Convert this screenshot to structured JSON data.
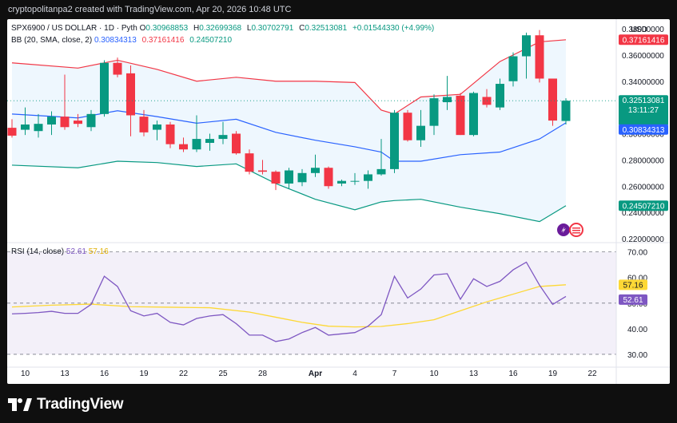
{
  "header": {
    "caption": "cryptopolitanpa2 created with TradingView.com, Apr 20, 2026 10:48 UTC"
  },
  "legend": {
    "symbol": "SPX6900 / US DOLLAR · 1D · Pyth",
    "open_label": "O",
    "open": "0.30968853",
    "high_label": "H",
    "high": "0.32699368",
    "low_label": "L",
    "low": "0.30702791",
    "close_label": "C",
    "close": "0.32513081",
    "change": "+0.01544330 (+4.99%)",
    "bb_label": "BB (20, SMA, close, 2)",
    "bb_basis": "0.30834313",
    "bb_upper": "0.37161416",
    "bb_lower": "0.24507210",
    "rsi_label": "RSI (14, close)",
    "rsi_value": "52.61",
    "rsi_ma": "57.16"
  },
  "axis": {
    "currency": "USD",
    "price_ticks": [
      "0.38000000",
      "0.36000000",
      "0.34000000",
      "0.32000000",
      "0.30000000",
      "0.28000000",
      "0.26000000",
      "0.24000000",
      "0.22000000"
    ],
    "rsi_ticks": [
      "70.00",
      "60.00",
      "50.00",
      "40.00",
      "30.00"
    ],
    "x_ticks": [
      "10",
      "13",
      "16",
      "19",
      "22",
      "25",
      "28",
      "Apr",
      "4",
      "7",
      "10",
      "13",
      "16",
      "19",
      "22"
    ]
  },
  "price_badges": {
    "upper": "0.37161416",
    "last": "0.32513081",
    "countdown": "13:11:27",
    "basis": "0.30834313",
    "lower": "0.24507210",
    "rsi_ma": "57.16",
    "rsi": "52.61"
  },
  "colors": {
    "up": "#089981",
    "down": "#f23645",
    "bb_basis": "#2962ff",
    "bb_upper": "#f23645",
    "bb_lower": "#089981",
    "bb_fill": "#2196f3",
    "rsi": "#7e57c2",
    "rsi_ma": "#fdd835",
    "rsi_bg": "#7e57c2"
  },
  "footer": {
    "brand": "TradingView"
  },
  "chart_data": {
    "type": "candlestick",
    "title": "SPX6900 / US DOLLAR · 1D · Pyth",
    "ylim": [
      0.22,
      0.38
    ],
    "x_tick_days": [
      10,
      13,
      16,
      19,
      22,
      25,
      28,
      32,
      35,
      38,
      41,
      44,
      47,
      50,
      53
    ],
    "candles": [
      {
        "d": 9,
        "o": 0.3045,
        "h": 0.311,
        "l": 0.297,
        "c": 0.2985
      },
      {
        "d": 10,
        "o": 0.303,
        "h": 0.32,
        "l": 0.299,
        "c": 0.307
      },
      {
        "d": 11,
        "o": 0.302,
        "h": 0.315,
        "l": 0.297,
        "c": 0.3075
      },
      {
        "d": 12,
        "o": 0.307,
        "h": 0.317,
        "l": 0.299,
        "c": 0.313
      },
      {
        "d": 13,
        "o": 0.313,
        "h": 0.345,
        "l": 0.303,
        "c": 0.305
      },
      {
        "d": 14,
        "o": 0.31,
        "h": 0.315,
        "l": 0.305,
        "c": 0.3075
      },
      {
        "d": 15,
        "o": 0.305,
        "h": 0.318,
        "l": 0.302,
        "c": 0.315
      },
      {
        "d": 16,
        "o": 0.315,
        "h": 0.356,
        "l": 0.313,
        "c": 0.354
      },
      {
        "d": 17,
        "o": 0.354,
        "h": 0.358,
        "l": 0.343,
        "c": 0.345
      },
      {
        "d": 18,
        "o": 0.346,
        "h": 0.352,
        "l": 0.298,
        "c": 0.314
      },
      {
        "d": 19,
        "o": 0.313,
        "h": 0.318,
        "l": 0.298,
        "c": 0.301
      },
      {
        "d": 20,
        "o": 0.303,
        "h": 0.31,
        "l": 0.295,
        "c": 0.307
      },
      {
        "d": 21,
        "o": 0.307,
        "h": 0.309,
        "l": 0.289,
        "c": 0.292
      },
      {
        "d": 22,
        "o": 0.292,
        "h": 0.297,
        "l": 0.286,
        "c": 0.288
      },
      {
        "d": 23,
        "o": 0.288,
        "h": 0.314,
        "l": 0.286,
        "c": 0.296
      },
      {
        "d": 24,
        "o": 0.293,
        "h": 0.3,
        "l": 0.287,
        "c": 0.296
      },
      {
        "d": 25,
        "o": 0.296,
        "h": 0.309,
        "l": 0.292,
        "c": 0.299
      },
      {
        "d": 26,
        "o": 0.3,
        "h": 0.302,
        "l": 0.284,
        "c": 0.285
      },
      {
        "d": 27,
        "o": 0.285,
        "h": 0.288,
        "l": 0.269,
        "c": 0.271
      },
      {
        "d": 28,
        "o": 0.272,
        "h": 0.28,
        "l": 0.269,
        "c": 0.271
      },
      {
        "d": 29,
        "o": 0.271,
        "h": 0.272,
        "l": 0.257,
        "c": 0.262
      },
      {
        "d": 30,
        "o": 0.262,
        "h": 0.274,
        "l": 0.258,
        "c": 0.272
      },
      {
        "d": 31,
        "o": 0.263,
        "h": 0.273,
        "l": 0.26,
        "c": 0.27
      },
      {
        "d": 32,
        "o": 0.27,
        "h": 0.284,
        "l": 0.267,
        "c": 0.274
      },
      {
        "d": 33,
        "o": 0.274,
        "h": 0.275,
        "l": 0.258,
        "c": 0.26
      },
      {
        "d": 34,
        "o": 0.262,
        "h": 0.265,
        "l": 0.26,
        "c": 0.264
      },
      {
        "d": 35,
        "o": 0.264,
        "h": 0.27,
        "l": 0.261,
        "c": 0.264
      },
      {
        "d": 36,
        "o": 0.264,
        "h": 0.272,
        "l": 0.258,
        "c": 0.269
      },
      {
        "d": 37,
        "o": 0.269,
        "h": 0.296,
        "l": 0.268,
        "c": 0.273
      },
      {
        "d": 38,
        "o": 0.273,
        "h": 0.318,
        "l": 0.27,
        "c": 0.316
      },
      {
        "d": 39,
        "o": 0.316,
        "h": 0.318,
        "l": 0.294,
        "c": 0.295
      },
      {
        "d": 40,
        "o": 0.295,
        "h": 0.318,
        "l": 0.29,
        "c": 0.306
      },
      {
        "d": 41,
        "o": 0.306,
        "h": 0.33,
        "l": 0.299,
        "c": 0.327
      },
      {
        "d": 42,
        "o": 0.324,
        "h": 0.344,
        "l": 0.318,
        "c": 0.328
      },
      {
        "d": 43,
        "o": 0.329,
        "h": 0.331,
        "l": 0.299,
        "c": 0.299
      },
      {
        "d": 44,
        "o": 0.299,
        "h": 0.332,
        "l": 0.298,
        "c": 0.331
      },
      {
        "d": 45,
        "o": 0.328,
        "h": 0.334,
        "l": 0.32,
        "c": 0.322
      },
      {
        "d": 46,
        "o": 0.32,
        "h": 0.342,
        "l": 0.318,
        "c": 0.338
      },
      {
        "d": 47,
        "o": 0.34,
        "h": 0.362,
        "l": 0.336,
        "c": 0.359
      },
      {
        "d": 48,
        "o": 0.359,
        "h": 0.377,
        "l": 0.342,
        "c": 0.375
      },
      {
        "d": 49,
        "o": 0.375,
        "h": 0.379,
        "l": 0.339,
        "c": 0.342
      },
      {
        "d": 50,
        "o": 0.342,
        "h": 0.342,
        "l": 0.306,
        "c": 0.31
      },
      {
        "d": 51,
        "o": 0.30968853,
        "h": 0.32699368,
        "l": 0.30702791,
        "c": 0.32513081
      }
    ],
    "bollinger": {
      "basis": [
        [
          9,
          0.315
        ],
        [
          14,
          0.312
        ],
        [
          17,
          0.3175
        ],
        [
          20,
          0.313
        ],
        [
          23,
          0.308
        ],
        [
          26,
          0.311
        ],
        [
          29,
          0.301
        ],
        [
          32,
          0.295
        ],
        [
          35,
          0.29
        ],
        [
          37,
          0.286
        ],
        [
          38,
          0.279
        ],
        [
          40,
          0.279
        ],
        [
          43,
          0.284
        ],
        [
          46,
          0.286
        ],
        [
          49,
          0.296
        ],
        [
          51,
          0.3083
        ]
      ],
      "upper": [
        [
          9,
          0.354
        ],
        [
          14,
          0.35
        ],
        [
          17,
          0.356
        ],
        [
          20,
          0.349
        ],
        [
          23,
          0.34
        ],
        [
          26,
          0.343
        ],
        [
          29,
          0.34
        ],
        [
          32,
          0.34
        ],
        [
          35,
          0.339
        ],
        [
          37,
          0.318
        ],
        [
          38,
          0.315
        ],
        [
          40,
          0.328
        ],
        [
          43,
          0.33
        ],
        [
          46,
          0.355
        ],
        [
          49,
          0.37
        ],
        [
          51,
          0.3716
        ]
      ],
      "lower": [
        [
          9,
          0.276
        ],
        [
          14,
          0.274
        ],
        [
          17,
          0.279
        ],
        [
          20,
          0.278
        ],
        [
          23,
          0.275
        ],
        [
          26,
          0.277
        ],
        [
          29,
          0.262
        ],
        [
          32,
          0.25
        ],
        [
          35,
          0.242
        ],
        [
          37,
          0.248
        ],
        [
          38,
          0.249
        ],
        [
          40,
          0.25
        ],
        [
          43,
          0.244
        ],
        [
          46,
          0.239
        ],
        [
          49,
          0.233
        ],
        [
          51,
          0.2451
        ]
      ]
    },
    "rsi": {
      "ylim": [
        25,
        73
      ],
      "levels": [
        70,
        50,
        30
      ],
      "rsi": [
        [
          9,
          45.8
        ],
        [
          10,
          46.0
        ],
        [
          11,
          46.3
        ],
        [
          12,
          46.8
        ],
        [
          13,
          46.0
        ],
        [
          14,
          46.0
        ],
        [
          15,
          49.5
        ],
        [
          16,
          60.5
        ],
        [
          17,
          56.5
        ],
        [
          18,
          47.0
        ],
        [
          19,
          45.0
        ],
        [
          20,
          46.0
        ],
        [
          21,
          42.5
        ],
        [
          22,
          41.5
        ],
        [
          23,
          44.0
        ],
        [
          24,
          45.0
        ],
        [
          25,
          45.5
        ],
        [
          26,
          42.0
        ],
        [
          27,
          37.5
        ],
        [
          28,
          37.5
        ],
        [
          29,
          35.0
        ],
        [
          30,
          36.0
        ],
        [
          31,
          38.5
        ],
        [
          32,
          40.5
        ],
        [
          33,
          37.5
        ],
        [
          34,
          38.0
        ],
        [
          35,
          38.5
        ],
        [
          36,
          41.0
        ],
        [
          37,
          45.5
        ],
        [
          38,
          60.5
        ],
        [
          39,
          52.0
        ],
        [
          40,
          55.5
        ],
        [
          41,
          61.0
        ],
        [
          42,
          61.5
        ],
        [
          43,
          51.5
        ],
        [
          44,
          59.5
        ],
        [
          45,
          56.5
        ],
        [
          46,
          58.5
        ],
        [
          47,
          63.0
        ],
        [
          48,
          66.0
        ],
        [
          49,
          57.0
        ],
        [
          50,
          49.5
        ],
        [
          51,
          52.61
        ]
      ],
      "rsi_ma": [
        [
          9,
          48.5
        ],
        [
          12,
          49.2
        ],
        [
          15,
          49.6
        ],
        [
          18,
          48.6
        ],
        [
          21,
          48.4
        ],
        [
          24,
          48.2
        ],
        [
          27,
          46.5
        ],
        [
          29,
          44.5
        ],
        [
          31,
          42.5
        ],
        [
          33,
          41.0
        ],
        [
          35,
          40.7
        ],
        [
          37,
          40.9
        ],
        [
          39,
          42.0
        ],
        [
          41,
          43.5
        ],
        [
          43,
          47.0
        ],
        [
          45,
          50.5
        ],
        [
          47,
          53.5
        ],
        [
          49,
          56.5
        ],
        [
          51,
          57.16
        ]
      ]
    }
  }
}
